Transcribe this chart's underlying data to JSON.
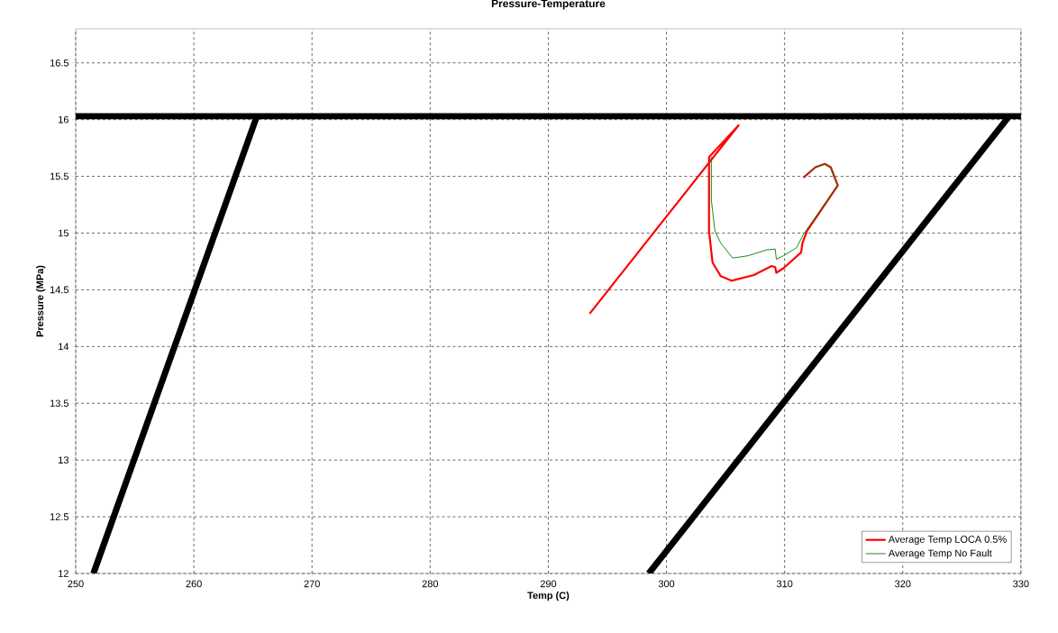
{
  "chart_data": {
    "type": "line",
    "title": "Pressure-Temperature",
    "xlabel": "Temp (C)",
    "ylabel": "Pressure (MPa)",
    "xlim": [
      250,
      330
    ],
    "ylim": [
      12,
      16.8
    ],
    "xticks": [
      250,
      260,
      270,
      280,
      290,
      300,
      310,
      320,
      330
    ],
    "yticks": [
      12,
      12.5,
      13,
      13.5,
      14,
      14.5,
      15,
      15.5,
      16,
      16.5
    ],
    "grid": true,
    "legend": "bottom right",
    "marker": "none",
    "line_style": "solid",
    "series": [
      {
        "name": "Average Temp LOCA 0.5%",
        "color": "#ff0000",
        "x": [
          293.5,
          306.1,
          303.6,
          303.6,
          303.9,
          304.6,
          305.5,
          307.4,
          308.9,
          309.2,
          309.3,
          309.9,
          311.4,
          311.5,
          311.9,
          314.5,
          313.9,
          313.4,
          312.6,
          311.6
        ],
        "values": [
          14.29,
          15.95,
          15.67,
          15.02,
          14.74,
          14.62,
          14.58,
          14.63,
          14.71,
          14.7,
          14.65,
          14.69,
          14.83,
          14.91,
          15.02,
          15.42,
          15.58,
          15.61,
          15.58,
          15.49
        ]
      },
      {
        "name": "Average Temp No Fault",
        "color": "#008000",
        "x": [
          303.8,
          303.8,
          304.1,
          304.6,
          305.6,
          306.9,
          308.4,
          309.2,
          309.3,
          309.9,
          311.0,
          311.6,
          314.5,
          313.9,
          313.4,
          312.6,
          311.6
        ],
        "values": [
          15.67,
          15.29,
          15.02,
          14.91,
          14.78,
          14.8,
          14.85,
          14.86,
          14.77,
          14.8,
          14.87,
          14.99,
          15.42,
          15.58,
          15.61,
          15.58,
          15.49
        ]
      },
      {
        "color": "#000000",
        "x": [
          250,
          330
        ],
        "values": [
          16.03,
          16.03
        ]
      },
      {
        "color": "#000000",
        "x": [
          251.5,
          265.3
        ],
        "values": [
          12,
          16.02
        ]
      },
      {
        "color": "#000000",
        "x": [
          298.5,
          329
        ],
        "values": [
          12,
          16.03
        ]
      }
    ]
  }
}
